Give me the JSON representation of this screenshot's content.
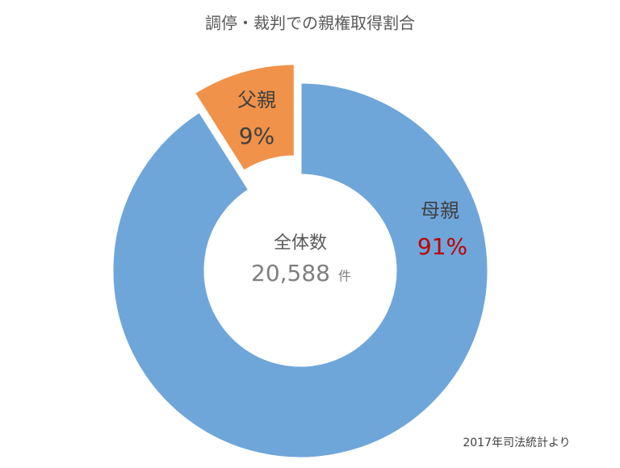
{
  "chart_data": {
    "type": "donut",
    "title": "調停・裁判での親権取得割合",
    "categories": [
      "母親",
      "父親"
    ],
    "values": [
      91,
      9
    ],
    "value_labels": [
      "91%",
      "9%"
    ],
    "colors": [
      "#6fa6da",
      "#f0924a"
    ],
    "label_colors": [
      "#c00000",
      "#404040"
    ],
    "exploded": [
      false,
      true
    ],
    "center_label": "全体数",
    "center_value": "20,588",
    "center_unit": "件",
    "source": "2017年司法統計より"
  }
}
